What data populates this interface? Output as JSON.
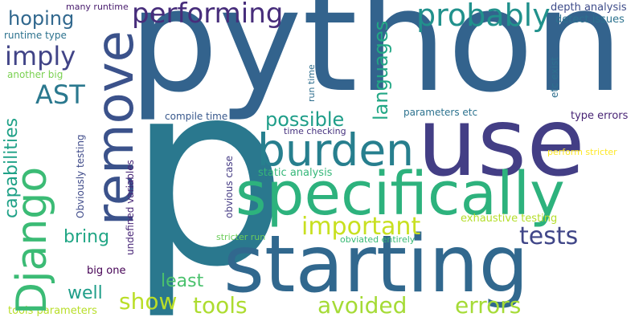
{
  "words": [
    {
      "text": "python",
      "color": "#33638d"
    },
    {
      "text": "p",
      "color": "#2a788e"
    },
    {
      "text": "use",
      "color": "#433e85"
    },
    {
      "text": "starting",
      "color": "#31688e"
    },
    {
      "text": "specifically",
      "color": "#2db27d"
    },
    {
      "text": "remove",
      "color": "#3b528b"
    },
    {
      "text": "Django",
      "color": "#3bbb75"
    },
    {
      "text": "burden",
      "color": "#277f8e"
    },
    {
      "text": "probably",
      "color": "#21918c"
    },
    {
      "text": "performing",
      "color": "#472d7b"
    },
    {
      "text": "languages",
      "color": "#22a785"
    },
    {
      "text": "imply",
      "color": "#414487"
    },
    {
      "text": "hoping",
      "color": "#31688e"
    },
    {
      "text": "AST",
      "color": "#2a788e"
    },
    {
      "text": "capabilities",
      "color": "#1fa187"
    },
    {
      "text": "important",
      "color": "#c8e020"
    },
    {
      "text": "tests",
      "color": "#404688"
    },
    {
      "text": "possible",
      "color": "#1f9e89"
    },
    {
      "text": "errors",
      "color": "#a5db36"
    },
    {
      "text": "avoided",
      "color": "#a5db36"
    },
    {
      "text": "tools",
      "color": "#addc30"
    },
    {
      "text": "show",
      "color": "#bade28"
    },
    {
      "text": "bring",
      "color": "#21a685"
    },
    {
      "text": "least",
      "color": "#4ac16d"
    },
    {
      "text": "well",
      "color": "#1f9e89"
    },
    {
      "text": "many runtime",
      "color": "#481b6d"
    },
    {
      "text": "runtime type",
      "color": "#2c728e"
    },
    {
      "text": "another big",
      "color": "#7ad151"
    },
    {
      "text": "depth analysis",
      "color": "#3e4c8a"
    },
    {
      "text": "detect issues",
      "color": "#2c728e"
    },
    {
      "text": "etc exist",
      "color": "#2e6f8e"
    },
    {
      "text": "type errors",
      "color": "#482475"
    },
    {
      "text": "parameters etc",
      "color": "#2c728e"
    },
    {
      "text": "compile time",
      "color": "#38588c"
    },
    {
      "text": "run time",
      "color": "#2e6e8e"
    },
    {
      "text": "time checking",
      "color": "#46327e"
    },
    {
      "text": "Obviously testing",
      "color": "#3e4a89"
    },
    {
      "text": "undefined variables",
      "color": "#482677"
    },
    {
      "text": "obvious case",
      "color": "#443a83"
    },
    {
      "text": "static analysis",
      "color": "#35b779"
    },
    {
      "text": "perform stricter",
      "color": "#fde725"
    },
    {
      "text": "exhaustive testing",
      "color": "#b5de2b"
    },
    {
      "text": "stricter run",
      "color": "#6ccd5a"
    },
    {
      "text": "obviated entirely",
      "color": "#3aba76"
    },
    {
      "text": "big one",
      "color": "#440154"
    },
    {
      "text": "tools parameters",
      "color": "#b8de29"
    }
  ]
}
